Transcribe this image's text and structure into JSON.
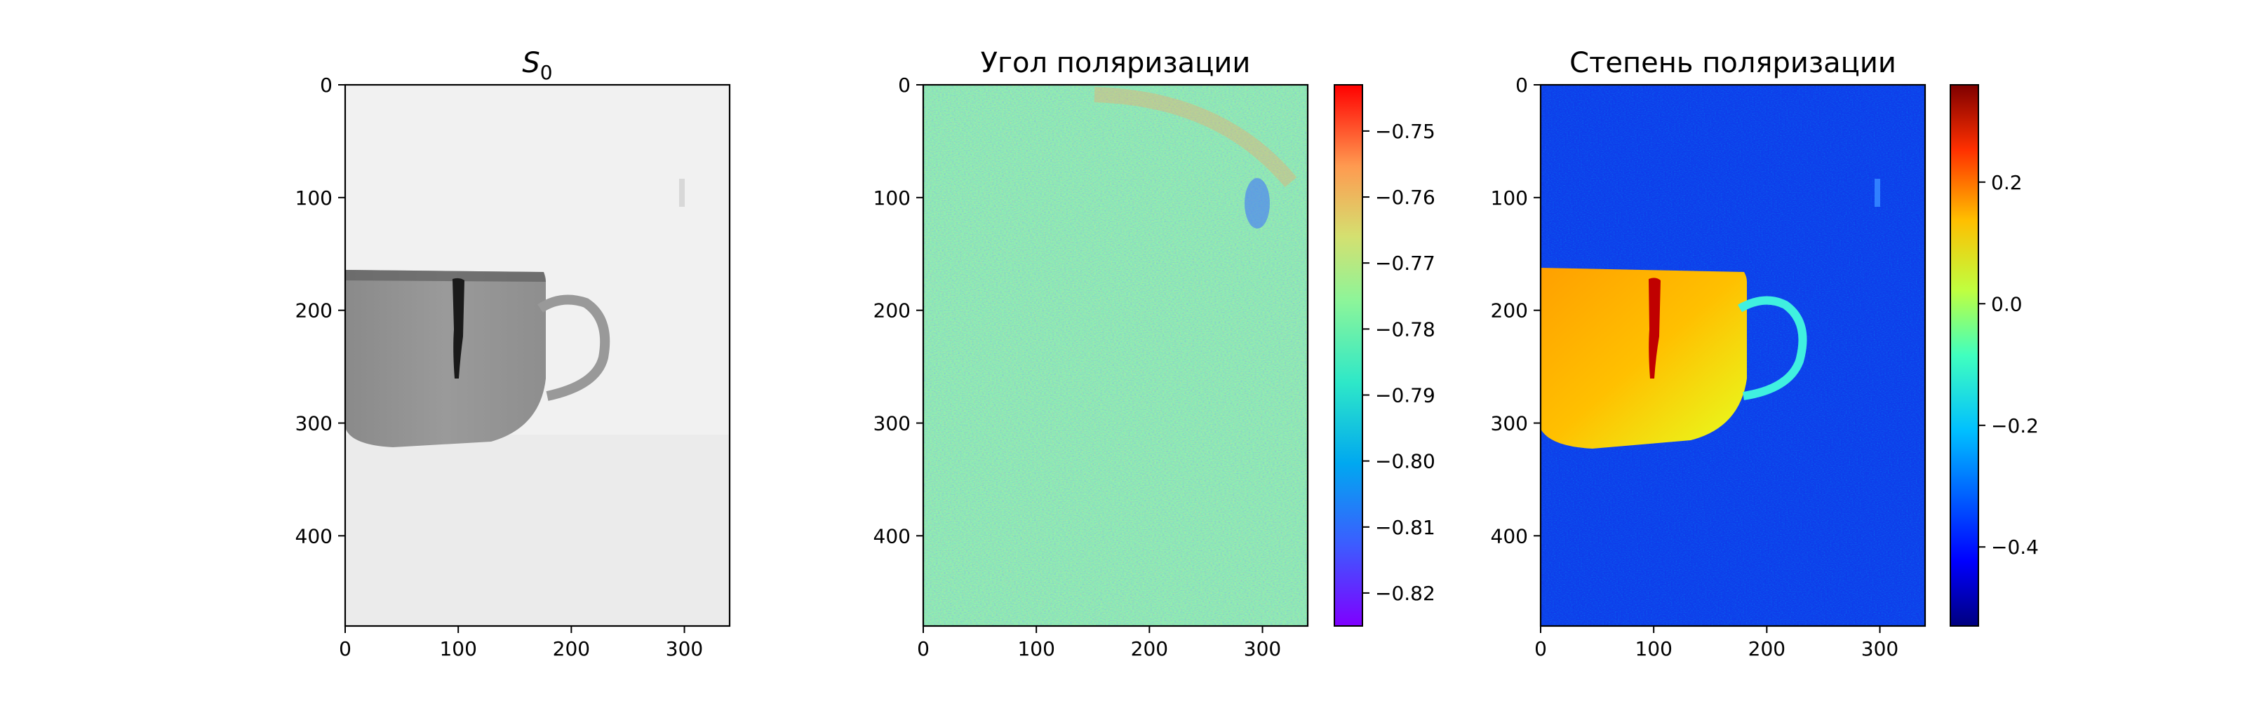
{
  "chart_data": [
    {
      "type": "heatmap",
      "title": "S",
      "title_subscript": "0",
      "description": "grayscale intensity image of a cup",
      "xlim": [
        0,
        340
      ],
      "ylim": [
        480,
        0
      ],
      "xticks": [
        0,
        100,
        200,
        300
      ],
      "yticks": [
        0,
        100,
        200,
        300,
        400
      ],
      "colormap": "gray",
      "colorbar": null
    },
    {
      "type": "heatmap",
      "title": "Угол поляризации",
      "xlim": [
        0,
        340
      ],
      "ylim": [
        480,
        0
      ],
      "xticks": [
        0,
        100,
        200,
        300
      ],
      "yticks": [
        0,
        100,
        200,
        300,
        400
      ],
      "colormap": "rainbow",
      "colorbar": {
        "vmin": -0.825,
        "vmax": -0.743,
        "ticks": [
          -0.75,
          -0.76,
          -0.77,
          -0.78,
          -0.79,
          -0.8,
          -0.81,
          -0.82
        ],
        "tick_labels": [
          "−0.75",
          "−0.76",
          "−0.77",
          "−0.78",
          "−0.79",
          "−0.80",
          "−0.81",
          "−0.82"
        ]
      }
    },
    {
      "type": "heatmap",
      "title": "Степень поляризации",
      "xlim": [
        0,
        340
      ],
      "ylim": [
        480,
        0
      ],
      "xticks": [
        0,
        100,
        200,
        300
      ],
      "yticks": [
        0,
        100,
        200,
        300,
        400
      ],
      "colormap": "jet",
      "colorbar": {
        "vmin": -0.53,
        "vmax": 0.36,
        "ticks": [
          0.2,
          0.0,
          -0.2,
          -0.4
        ],
        "tick_labels": [
          "0.2",
          "0.0",
          "−0.2",
          "−0.4"
        ]
      }
    }
  ],
  "colors": {
    "axis": "#000000",
    "background": "#ffffff"
  }
}
